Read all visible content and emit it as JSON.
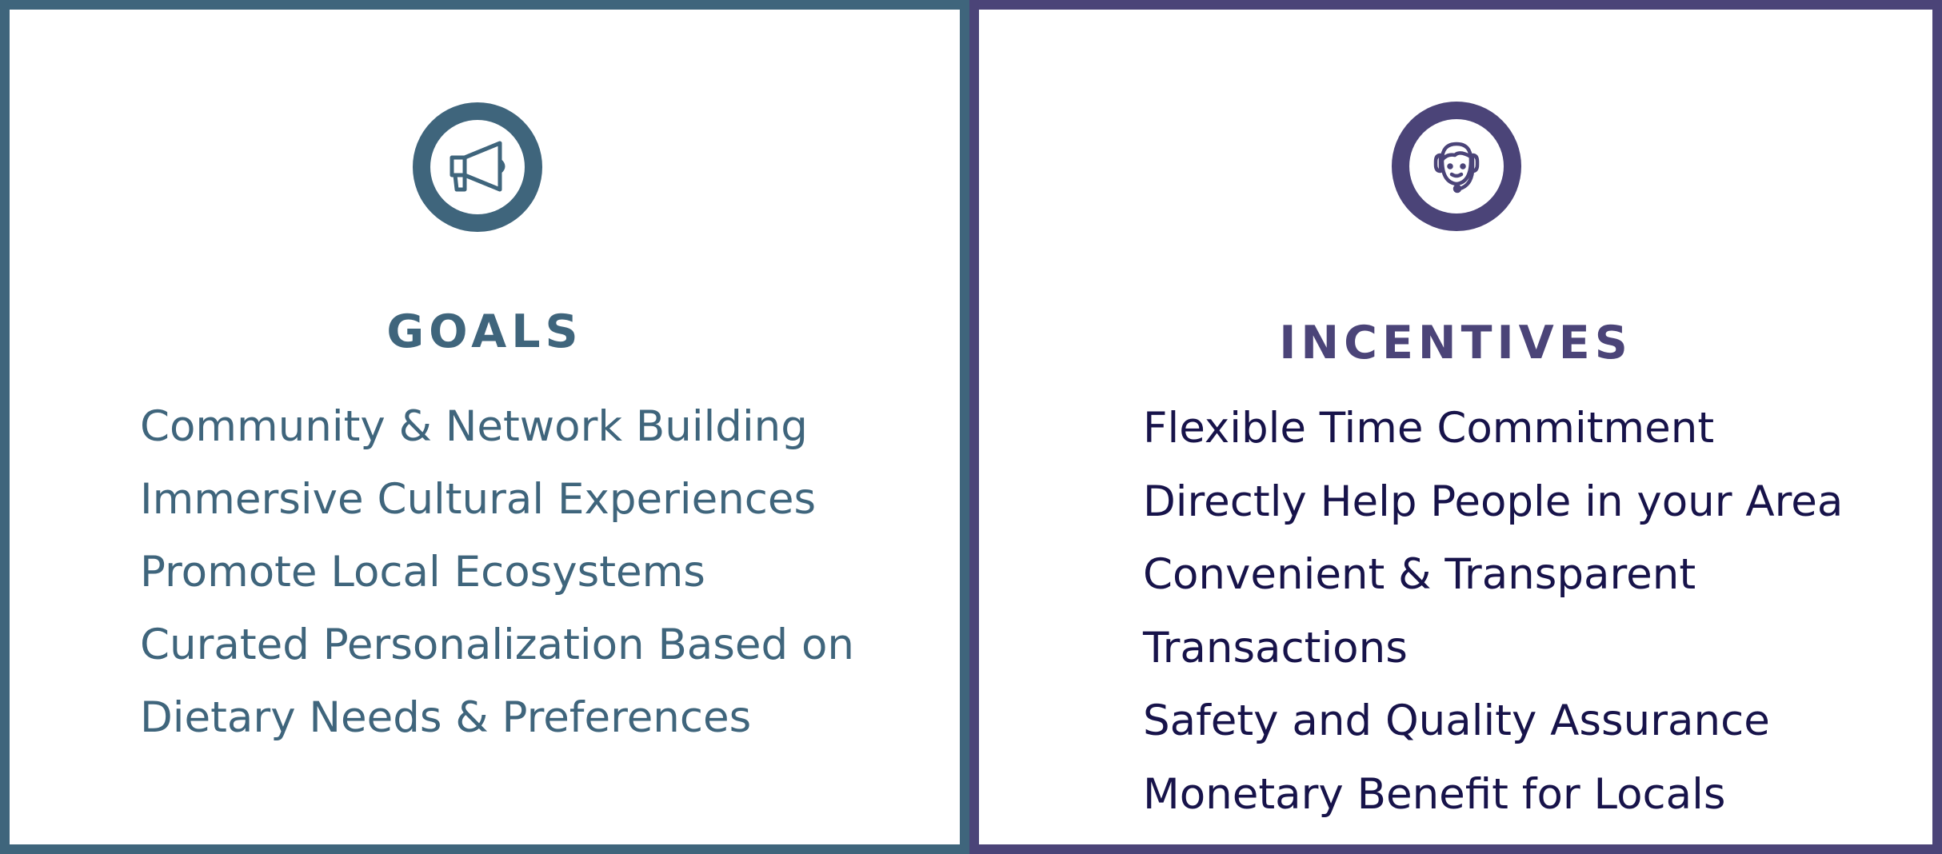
{
  "colors": {
    "goals_accent": "#3f657c",
    "incentives_accent": "#4b4478",
    "incentives_text": "#17134a",
    "background": "#ffffff"
  },
  "goals": {
    "icon": "megaphone-icon",
    "title": "GOALS",
    "lines": [
      "Community & Network Building",
      "Immersive Cultural Experiences",
      "Promote Local Ecosystems",
      "Curated Personalization Based on",
      "Dietary Needs & Preferences"
    ]
  },
  "incentives": {
    "icon": "support-agent-icon",
    "title": "INCENTIVES",
    "lines": [
      "Flexible Time Commitment",
      "Directly Help People in your Area",
      "Convenient & Transparent",
      "Transactions",
      "Safety and Quality Assurance",
      "Monetary Benefit for Locals"
    ]
  }
}
